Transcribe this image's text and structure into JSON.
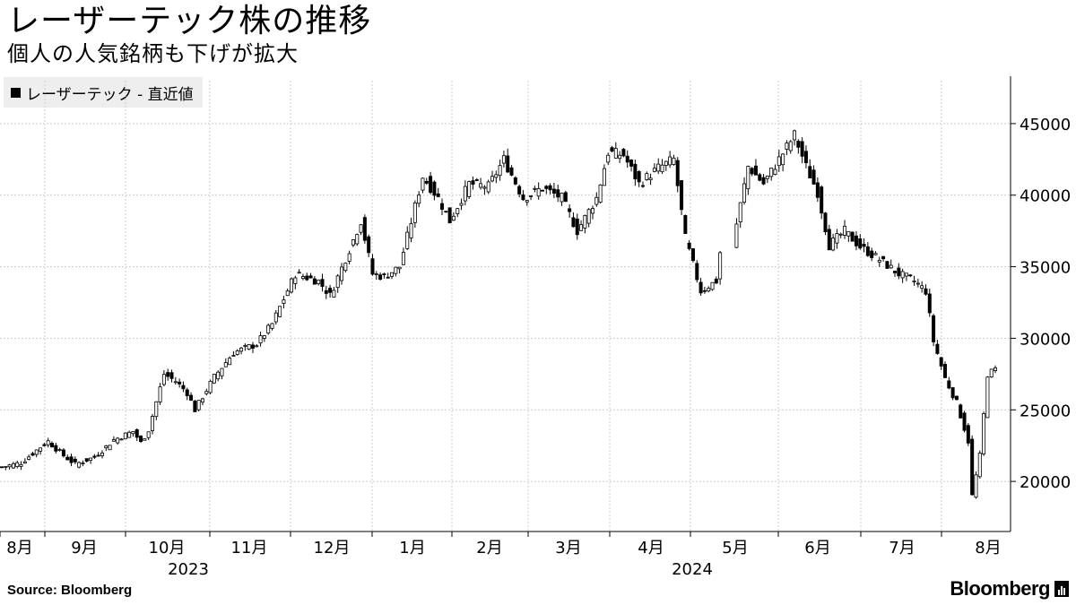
{
  "header": {
    "title": "レーザーテック株の推移",
    "subtitle": "個人の人気銘柄も下げが拡大"
  },
  "legend": {
    "label": "レーザーテック - 直近値",
    "color": "#000000"
  },
  "footer": {
    "source": "Source:  Bloomberg",
    "logo": "Bloomberg"
  },
  "chart_data": {
    "type": "candlestick",
    "series_name": "レーザーテック - 直近値",
    "y_ticks": [
      20000,
      25000,
      30000,
      35000,
      40000,
      45000
    ],
    "ylim": [
      16500,
      48000
    ],
    "y_axis_side": "right",
    "grid": true,
    "x_ticks": [
      "8月",
      "9月",
      "10月",
      "11月",
      "12月",
      "1月",
      "2月",
      "3月",
      "4月",
      "5月",
      "6月",
      "7月",
      "8月"
    ],
    "x_years": [
      "2023",
      "2024"
    ],
    "legend_position": "top-left",
    "anchors": [
      [
        0,
        21000
      ],
      [
        5,
        21300
      ],
      [
        10,
        22400
      ],
      [
        12,
        22800
      ],
      [
        16,
        21800
      ],
      [
        19,
        21200
      ],
      [
        24,
        21700
      ],
      [
        29,
        22900
      ],
      [
        34,
        23500
      ],
      [
        36,
        22700
      ],
      [
        38,
        23600
      ],
      [
        42,
        27500
      ],
      [
        45,
        27000
      ],
      [
        48,
        26200
      ],
      [
        50,
        25000
      ],
      [
        55,
        27300
      ],
      [
        60,
        29000
      ],
      [
        66,
        29600
      ],
      [
        70,
        31000
      ],
      [
        76,
        34500
      ],
      [
        82,
        34000
      ],
      [
        85,
        33000
      ],
      [
        90,
        36200
      ],
      [
        93,
        38200
      ],
      [
        96,
        34500
      ],
      [
        99,
        34300
      ],
      [
        103,
        35000
      ],
      [
        109,
        41300
      ],
      [
        113,
        39800
      ],
      [
        116,
        38200
      ],
      [
        121,
        40800
      ],
      [
        126,
        40600
      ],
      [
        130,
        42500
      ],
      [
        135,
        39800
      ],
      [
        140,
        40500
      ],
      [
        145,
        39800
      ],
      [
        149,
        37500
      ],
      [
        154,
        39800
      ],
      [
        157,
        43000
      ],
      [
        161,
        42800
      ],
      [
        165,
        40800
      ],
      [
        170,
        41900
      ],
      [
        174,
        42500
      ],
      [
        177,
        37000
      ],
      [
        181,
        33300
      ],
      [
        185,
        34000
      ],
      [
        187,
        38000
      ],
      [
        190,
        42000
      ],
      [
        194,
        40800
      ],
      [
        198,
        42500
      ],
      [
        202,
        44200
      ],
      [
        205,
        42000
      ],
      [
        208,
        40200
      ],
      [
        211,
        36500
      ],
      [
        215,
        37500
      ],
      [
        219,
        36400
      ],
      [
        224,
        35500
      ],
      [
        229,
        34500
      ],
      [
        233,
        34000
      ],
      [
        236,
        33300
      ],
      [
        238,
        29800
      ],
      [
        241,
        27200
      ],
      [
        244,
        25500
      ],
      [
        247,
        22800
      ],
      [
        248,
        19000
      ],
      [
        250,
        21800
      ],
      [
        252,
        27500
      ],
      [
        254,
        27800
      ]
    ],
    "candle_count": 255
  }
}
